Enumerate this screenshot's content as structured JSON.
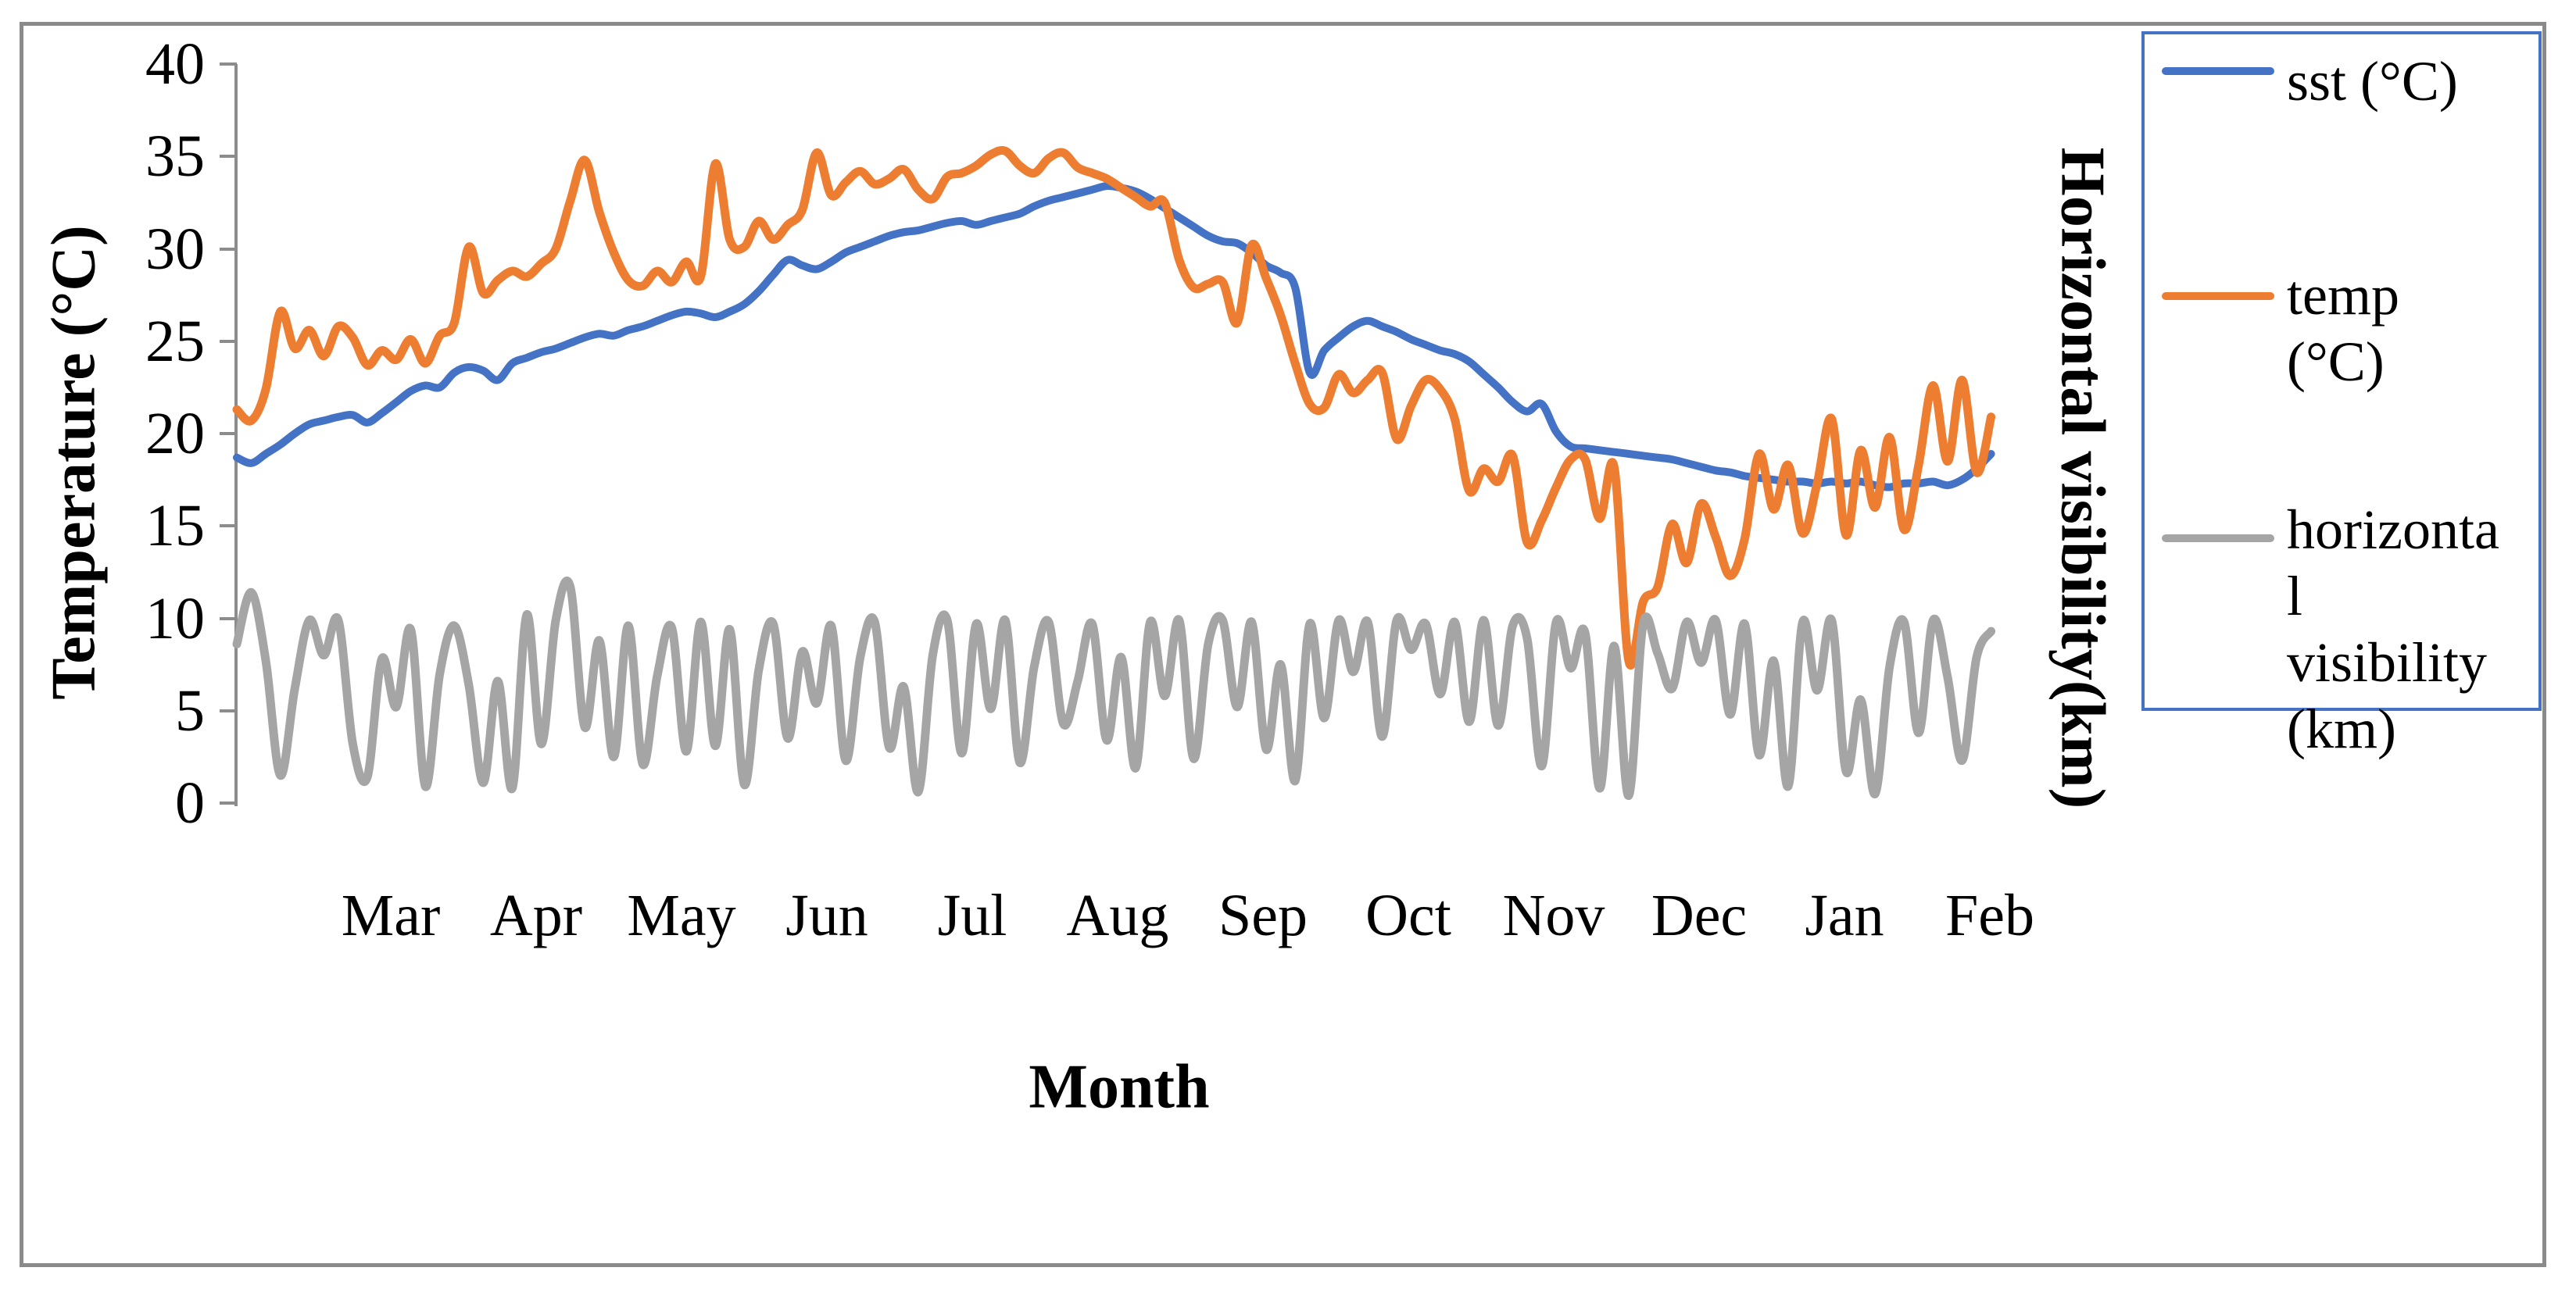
{
  "figure": {
    "background": "#ffffff",
    "border_color": "#8a8a8a",
    "axis_color": "#8c8c8c"
  },
  "left_axis": {
    "title": "Temperature (°C)",
    "tick_labels": [
      "40",
      "35",
      "30",
      "25",
      "20",
      "15",
      "10",
      "5",
      "0"
    ]
  },
  "right_axis": {
    "title": "Horizontal visibility(km)"
  },
  "x_axis": {
    "title": "Month"
  },
  "legend": {
    "border_color": "#4472C4",
    "items": [
      {
        "key": "sst",
        "label_lines": "sst (°C)",
        "color": "#4472C4"
      },
      {
        "key": "temp",
        "label_lines": "temp\n(°C)",
        "color": "#ED7D31"
      },
      {
        "key": "visibility",
        "label_lines": "horizonta\nl\nvisibility\n(km)",
        "color": "#A5A5A5"
      }
    ]
  },
  "chart_data": {
    "type": "line",
    "title": "",
    "xlabel": "Month",
    "ylabel_left": "Temperature (°C)",
    "ylabel_right": "Horizontal visibility(km)",
    "ylim": [
      0,
      40
    ],
    "y_tick_step": 5,
    "grid": false,
    "legend_position": "right",
    "categories": [
      "Mar",
      "Apr",
      "May",
      "Jun",
      "Jul",
      "Aug",
      "Sep",
      "Oct",
      "Nov",
      "Dec",
      "Jan",
      "Feb"
    ],
    "x_unit": "day",
    "x_step_days": 3,
    "x_span_days": 365,
    "series": [
      {
        "name": "sst (°C)",
        "color": "#4472C4",
        "stroke_width": 10,
        "values": [
          18.7,
          18.4,
          18.9,
          19.4,
          20.0,
          20.5,
          20.7,
          20.9,
          21.0,
          20.6,
          21.1,
          21.7,
          22.3,
          22.6,
          22.5,
          23.3,
          23.6,
          23.4,
          22.9,
          23.8,
          24.1,
          24.4,
          24.6,
          24.9,
          25.2,
          25.4,
          25.3,
          25.6,
          25.8,
          26.1,
          26.4,
          26.6,
          26.5,
          26.3,
          26.6,
          27.0,
          27.7,
          28.6,
          29.4,
          29.1,
          28.9,
          29.3,
          29.8,
          30.1,
          30.4,
          30.7,
          30.9,
          31.0,
          31.2,
          31.4,
          31.5,
          31.3,
          31.5,
          31.7,
          31.9,
          32.3,
          32.6,
          32.8,
          33.0,
          33.2,
          33.4,
          33.3,
          33.1,
          32.7,
          32.2,
          31.7,
          31.2,
          30.7,
          30.4,
          30.3,
          29.8,
          29.1,
          28.7,
          27.9,
          23.3,
          24.5,
          25.2,
          25.8,
          26.1,
          25.8,
          25.5,
          25.1,
          24.8,
          24.5,
          24.3,
          23.9,
          23.2,
          22.5,
          21.7,
          21.2,
          21.6,
          20.1,
          19.3,
          19.2,
          19.1,
          19.0,
          18.9,
          18.8,
          18.7,
          18.6,
          18.4,
          18.2,
          18.0,
          17.9,
          17.7,
          17.6,
          17.5,
          17.4,
          17.4,
          17.3,
          17.4,
          17.3,
          17.4,
          17.2,
          17.1,
          17.3,
          17.3,
          17.4,
          17.2,
          17.5,
          18.1,
          18.9
        ]
      },
      {
        "name": "temp (°C)",
        "color": "#ED7D31",
        "stroke_width": 11,
        "values": [
          21.3,
          20.7,
          22.4,
          26.6,
          24.6,
          25.6,
          24.2,
          25.8,
          25.2,
          23.7,
          24.5,
          24.0,
          25.1,
          23.8,
          25.3,
          26.0,
          30.1,
          27.6,
          28.3,
          28.8,
          28.5,
          29.2,
          30.0,
          32.6,
          34.8,
          32.0,
          29.8,
          28.3,
          28.0,
          28.8,
          28.2,
          29.3,
          28.5,
          34.6,
          30.5,
          30.1,
          31.5,
          30.5,
          31.3,
          32.1,
          35.2,
          32.9,
          33.6,
          34.2,
          33.5,
          33.8,
          34.3,
          33.2,
          32.7,
          33.9,
          34.1,
          34.5,
          35.1,
          35.3,
          34.5,
          34.1,
          34.9,
          35.2,
          34.4,
          34.1,
          33.8,
          33.3,
          32.8,
          32.3,
          32.5,
          29.4,
          27.9,
          28.1,
          28.2,
          26.0,
          30.2,
          28.4,
          26.4,
          23.8,
          21.6,
          21.4,
          23.2,
          22.2,
          22.9,
          23.3,
          19.7,
          21.5,
          22.9,
          22.4,
          20.8,
          16.9,
          18.1,
          17.4,
          18.8,
          14.1,
          15.3,
          17.1,
          18.6,
          18.6,
          15.4,
          18.2,
          7.7,
          10.9,
          11.7,
          15.1,
          13.0,
          16.2,
          14.4,
          12.3,
          14.3,
          18.9,
          15.9,
          18.3,
          14.6,
          17.3,
          20.8,
          14.5,
          19.1,
          16.0,
          19.8,
          14.8,
          18.3,
          22.6,
          18.5,
          22.9,
          17.9,
          20.9
        ]
      },
      {
        "name": "horizontal visibility (km)",
        "color": "#A5A5A5",
        "stroke_width": 11,
        "values": [
          8.6,
          11.4,
          7.7,
          1.5,
          6.2,
          9.9,
          8.0,
          9.9,
          3.2,
          1.4,
          7.8,
          5.2,
          9.4,
          0.9,
          7.0,
          9.6,
          6.4,
          1.1,
          6.6,
          0.8,
          10.2,
          3.2,
          9.9,
          11.7,
          4.1,
          8.8,
          2.5,
          9.6,
          2.1,
          6.9,
          9.5,
          2.8,
          9.8,
          3.1,
          9.4,
          1.0,
          7.2,
          9.7,
          3.5,
          8.2,
          5.4,
          9.6,
          2.3,
          7.9,
          9.8,
          3.0,
          6.3,
          0.6,
          8.0,
          9.9,
          2.7,
          9.7,
          5.1,
          9.9,
          2.2,
          7.4,
          9.8,
          4.3,
          6.6,
          9.7,
          3.4,
          7.9,
          1.9,
          9.8,
          5.8,
          9.9,
          2.4,
          8.6,
          9.9,
          5.2,
          9.8,
          2.9,
          7.5,
          1.2,
          9.7,
          4.6,
          9.9,
          7.1,
          9.8,
          3.6,
          9.9,
          8.3,
          9.7,
          5.9,
          9.8,
          4.4,
          9.9,
          4.2,
          9.6,
          8.9,
          2.0,
          9.8,
          7.3,
          9.2,
          0.8,
          8.5,
          0.4,
          9.7,
          8.1,
          6.2,
          9.8,
          7.6,
          9.9,
          4.8,
          9.7,
          2.6,
          7.7,
          0.9,
          9.8,
          6.1,
          9.9,
          1.7,
          5.6,
          0.5,
          7.4,
          9.8,
          3.8,
          9.9,
          6.8,
          2.3,
          7.9,
          9.3
        ]
      }
    ]
  }
}
